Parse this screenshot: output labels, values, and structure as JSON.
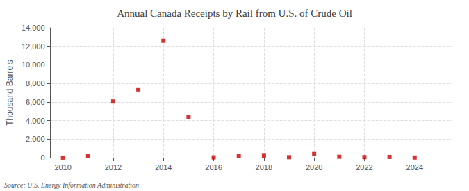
{
  "chart_data": {
    "type": "scatter",
    "title": "Annual Canada Receipts by Rail from U.S. of Crude Oil",
    "ylabel": "Thousand Barrels",
    "annotation": "Source: U.S. Energy Information Administration",
    "x": [
      2010,
      2011,
      2012,
      2013,
      2014,
      2015,
      2016,
      2017,
      2018,
      2019,
      2020,
      2021,
      2022,
      2023,
      2024
    ],
    "values": [
      5,
      150,
      6050,
      7350,
      12600,
      4350,
      30,
      150,
      200,
      50,
      400,
      100,
      60,
      80,
      15
    ],
    "color": "#cc0000",
    "marker": "square",
    "xlim": [
      2009.5,
      2025.5
    ],
    "xticks": [
      2010,
      2012,
      2014,
      2016,
      2018,
      2020,
      2022,
      2024
    ],
    "ylim": [
      0,
      14000
    ],
    "yticks": [
      0,
      {
        "value": 2000,
        "label": "2,000"
      },
      {
        "value": 4000,
        "label": "4,000"
      },
      {
        "value": 6000,
        "label": "6,000"
      },
      {
        "value": 8000,
        "label": "8,000"
      },
      {
        "value": 10000,
        "label": "10,000"
      },
      {
        "value": 12000,
        "label": "12,000"
      },
      {
        "value": 14000,
        "label": "14,000"
      }
    ],
    "grid": true
  }
}
